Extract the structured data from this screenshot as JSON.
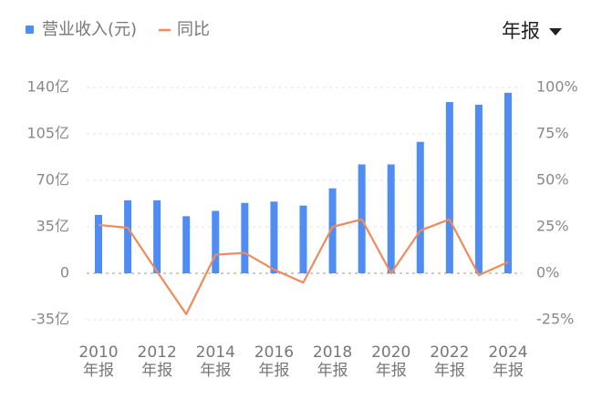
{
  "chart_data": {
    "type": "bar-line",
    "categories": [
      "2010年报",
      null,
      "2012年报",
      null,
      "2014年报",
      null,
      "2016年报",
      null,
      "2018年报",
      null,
      "2020年报",
      null,
      "2022年报",
      null,
      "2024年报"
    ],
    "series": [
      {
        "name": "营业收入(元)",
        "color": "#4f8cf3",
        "type": "bar",
        "values": [
          44,
          55,
          55,
          43,
          47,
          53,
          54,
          51,
          64,
          82,
          82,
          99,
          129,
          127,
          136
        ]
      },
      {
        "name": "同比",
        "color": "#f08a5d",
        "type": "line",
        "axis": "y2",
        "values": [
          26,
          24.5,
          1,
          -22,
          10,
          11,
          2,
          -5,
          25,
          29,
          0,
          23,
          29,
          -1,
          6
        ]
      }
    ],
    "ylim": [
      -35,
      140
    ],
    "yticks": [
      {
        "value": -35,
        "label": "-35亿"
      },
      0,
      {
        "value": 35,
        "label": "35亿"
      },
      {
        "value": 70,
        "label": "70亿"
      },
      {
        "value": 105,
        "label": "105亿"
      },
      {
        "value": 140,
        "label": "140亿"
      }
    ],
    "y2lim": [
      -25,
      100
    ],
    "y2ticks": [
      {
        "value": -25,
        "label": "-25%"
      },
      {
        "value": 0,
        "label": "0%"
      },
      {
        "value": 25,
        "label": "25%"
      },
      {
        "value": 50,
        "label": "50%"
      },
      {
        "value": 75,
        "label": "75%"
      },
      {
        "value": 100,
        "label": "100%"
      }
    ],
    "grid": true
  },
  "controls": {
    "period": "年报"
  }
}
